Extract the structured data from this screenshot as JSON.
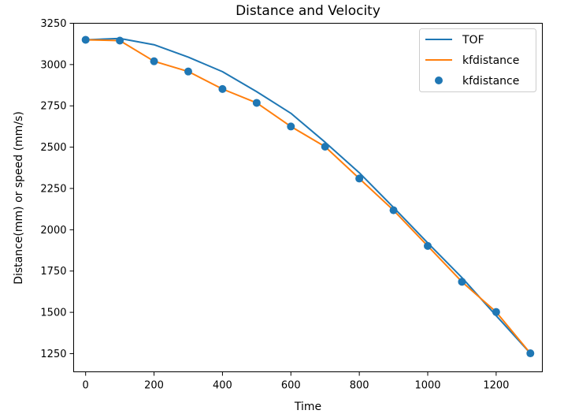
{
  "chart_data": {
    "type": "line",
    "title": "Distance and Velocity",
    "xlabel": "Time",
    "ylabel": "Distance(mm) or speed (mm/s)",
    "xlim": [
      -35,
      1335
    ],
    "ylim": [
      1140,
      3250
    ],
    "xticks": [
      0,
      200,
      400,
      600,
      800,
      1000,
      1200
    ],
    "yticks": [
      1250,
      1500,
      1750,
      2000,
      2250,
      2500,
      2750,
      3000,
      3250
    ],
    "grid": false,
    "legend_position": "top-right",
    "series": [
      {
        "name": "TOF",
        "kind": "line",
        "color": "#1f77b4",
        "x": [
          0,
          100,
          200,
          300,
          400,
          500,
          600,
          700,
          800,
          900,
          1000,
          1100,
          1200,
          1300
        ],
        "y": [
          3150,
          3158,
          3120,
          3045,
          2957,
          2836,
          2705,
          2530,
          2345,
          2135,
          1920,
          1710,
          1480,
          1252
        ]
      },
      {
        "name": "kfdistance",
        "kind": "line",
        "color": "#ff7f0e",
        "x": [
          0,
          100,
          200,
          300,
          400,
          500,
          600,
          700,
          800,
          900,
          1000,
          1100,
          1200,
          1300
        ],
        "y": [
          3150,
          3145,
          3020,
          2958,
          2852,
          2768,
          2625,
          2503,
          2310,
          2118,
          1902,
          1685,
          1502,
          1252
        ]
      },
      {
        "name": "kfdistance",
        "kind": "scatter",
        "color": "#1f77b4",
        "x": [
          0,
          100,
          200,
          300,
          400,
          500,
          600,
          700,
          800,
          900,
          1000,
          1100,
          1200,
          1300
        ],
        "y": [
          3150,
          3145,
          3020,
          2958,
          2852,
          2768,
          2625,
          2503,
          2310,
          2118,
          1902,
          1685,
          1502,
          1252
        ]
      }
    ]
  }
}
